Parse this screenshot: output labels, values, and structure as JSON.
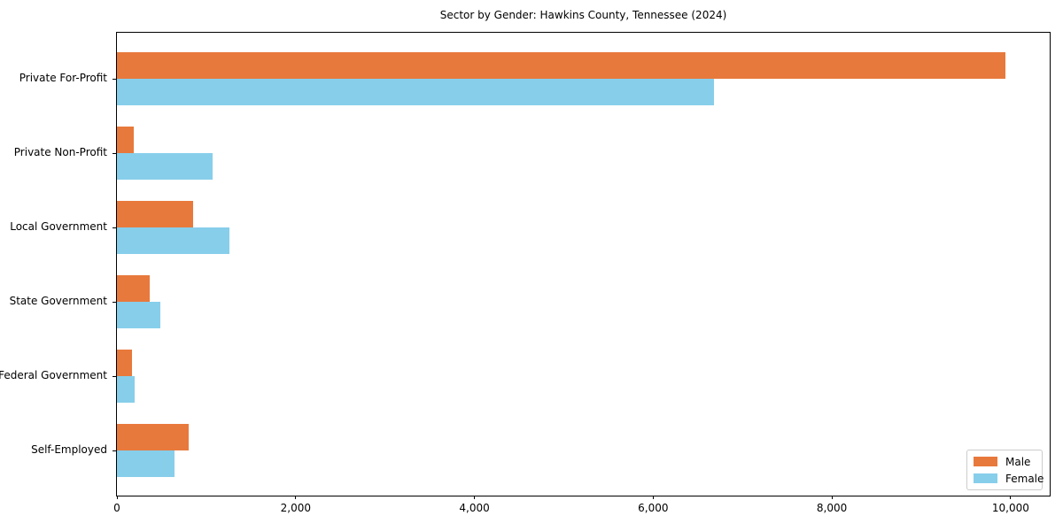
{
  "chart_data": {
    "type": "bar",
    "orientation": "horizontal",
    "title": "Sector by Gender: Hawkins County, Tennessee (2024)",
    "categories": [
      "Private For-Profit",
      "Private Non-Profit",
      "Local Government",
      "State Government",
      "Federal Government",
      "Self-Employed"
    ],
    "series": [
      {
        "name": "Male",
        "color": "#e8793c",
        "values": [
          9940,
          190,
          855,
          370,
          165,
          805
        ]
      },
      {
        "name": "Female",
        "color": "#87ceeb",
        "values": [
          6680,
          1070,
          1255,
          490,
          200,
          645
        ]
      }
    ],
    "xlabel": "",
    "ylabel": "",
    "xlim": [
      0,
      10437
    ],
    "x_ticks": [
      0,
      2000,
      4000,
      6000,
      8000,
      10000
    ],
    "x_tick_labels": [
      "0",
      "2,000",
      "4,000",
      "6,000",
      "8,000",
      "10,000"
    ],
    "grid": false,
    "legend_position": "lower right",
    "colors": {
      "male": "#e8793c",
      "female": "#87ceeb",
      "spine": "#000000",
      "legend_border": "#cccccc",
      "background": "#ffffff"
    }
  }
}
